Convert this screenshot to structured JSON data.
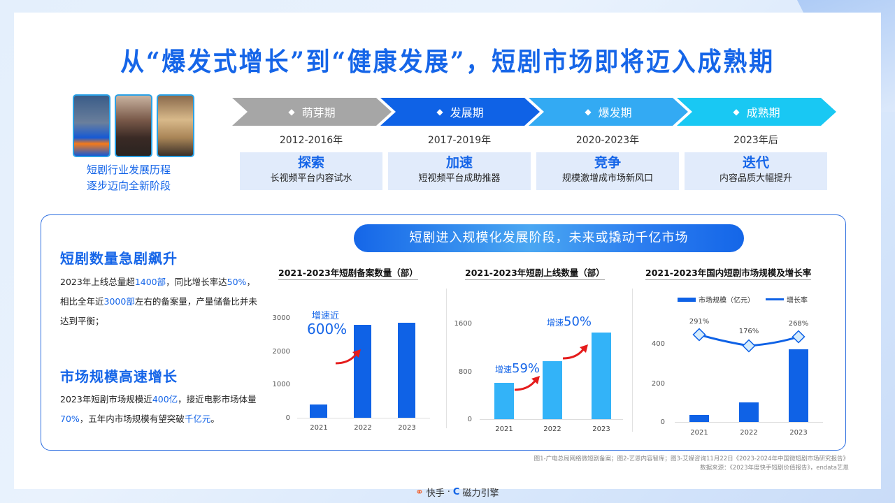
{
  "title": "从“爆发式增长”到“健康发展”，短剧市场即将迈入成熟期",
  "intro": {
    "line1": "短剧行业发展历程",
    "line2": "逐步迈向全新阶段"
  },
  "stages": [
    {
      "name": "萌芽期",
      "years": "2012-2016年",
      "keyword": "探索",
      "desc": "长视频平台内容试水",
      "color": "#a6a6a6"
    },
    {
      "name": "发展期",
      "years": "2017-2019年",
      "keyword": "加速",
      "desc": "短视频平台成助推器",
      "color": "#0f62e6"
    },
    {
      "name": "爆发期",
      "years": "2020-2023年",
      "keyword": "竞争",
      "desc": "规模激增成市场新风口",
      "color": "#33aaf3"
    },
    {
      "name": "成熟期",
      "years": "2023年后",
      "keyword": "迭代",
      "desc": "内容品质大幅提升",
      "color": "#19c8f3"
    }
  ],
  "left": {
    "h1": "短剧数量急剧飙升",
    "p1": [
      "2023年上线总量超",
      "1400部",
      "，同比增长率达",
      "50%",
      "，相比全年近",
      "3000部",
      "左右的备案量，产量储备比并未达到平衡；"
    ],
    "h2": "市场规模高速增长",
    "p2": [
      "2023年短剧市场规模近",
      "400亿",
      "，接近电影市场体量",
      "70%",
      "，五年内市场规模有望突破",
      "千亿元",
      "。"
    ]
  },
  "banner": "短剧进入规模化发展阶段，未来或撬动千亿市场",
  "chart_data": [
    {
      "type": "bar",
      "title": "2021-2023年短剧备案数量（部）",
      "categories": [
        "2021",
        "2022",
        "2023"
      ],
      "values": [
        400,
        2800,
        2850
      ],
      "yticks": [
        "3000",
        "2000",
        "1000",
        "0"
      ],
      "ylim": [
        0,
        3000
      ],
      "color": "#0f62e6",
      "annotations": [
        {
          "label": "增速近",
          "value": "600%"
        }
      ]
    },
    {
      "type": "bar",
      "title": "2021-2023年短剧上线数量（部）",
      "categories": [
        "2021",
        "2022",
        "2023"
      ],
      "values": [
        590,
        940,
        1420
      ],
      "yticks": [
        "1600",
        "800",
        "0"
      ],
      "ylim": [
        0,
        1600
      ],
      "color": "#33b3f8",
      "annotations": [
        {
          "label": "增速",
          "value": "59%"
        },
        {
          "label": "增速",
          "value": "50%"
        }
      ]
    },
    {
      "type": "bar+line",
      "title": "2021-2023年国内短剧市场规模及增长率",
      "categories": [
        "2021",
        "2022",
        "2023"
      ],
      "series": [
        {
          "name": "市场规模（亿元）",
          "type": "bar",
          "values": [
            37,
            102,
            374
          ]
        },
        {
          "name": "增长率",
          "type": "line",
          "values": [
            291,
            176,
            268
          ],
          "labels": [
            "291%",
            "176%",
            "268%"
          ]
        }
      ],
      "yticks": [
        "400",
        "200",
        "0"
      ],
      "ylim": [
        0,
        500
      ],
      "legend": [
        "市场规模（亿元）",
        "增长率"
      ],
      "color": "#0f62e6"
    }
  ],
  "footnote": {
    "line1": "图1-广电总局网络微短剧备案；图2-艺恩内容智库；图3-艾媒咨询11月22日《2023-2024年中国微短剧市场研究报告》",
    "line2": "数据来源：《2023年度快手短剧价值报告》，endata艺恩"
  },
  "logos": {
    "kuaishou": "快手",
    "sep": "·",
    "cili": "磁力引擎"
  }
}
